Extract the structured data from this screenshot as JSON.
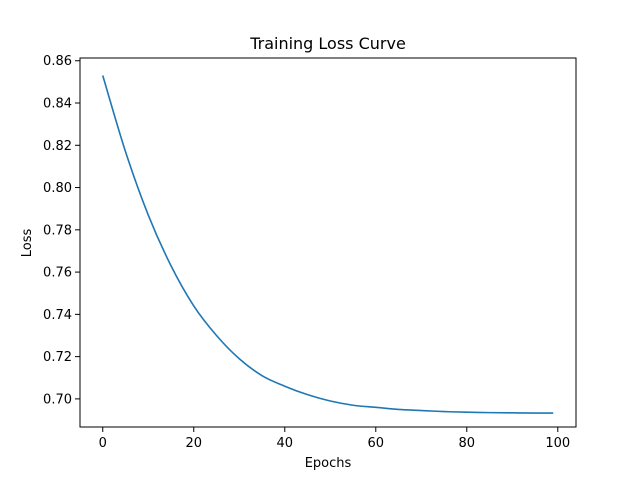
{
  "chart_data": {
    "type": "line",
    "title": "Training Loss Curve",
    "xlabel": "Epochs",
    "ylabel": "Loss",
    "xlim": [
      -5,
      104
    ],
    "ylim": [
      0.6867,
      0.8613
    ],
    "xticks": [
      0,
      20,
      40,
      60,
      80,
      100
    ],
    "xtick_labels": [
      "0",
      "20",
      "40",
      "60",
      "80",
      "100"
    ],
    "yticks": [
      0.7,
      0.72,
      0.74,
      0.76,
      0.78,
      0.8,
      0.82,
      0.84,
      0.86
    ],
    "ytick_labels": [
      "0.70",
      "0.72",
      "0.74",
      "0.76",
      "0.78",
      "0.80",
      "0.82",
      "0.84",
      "0.86"
    ],
    "grid": false,
    "series": [
      {
        "name": "Loss",
        "color": "#1f77b4",
        "x": [
          0,
          5,
          10,
          15,
          20,
          25,
          30,
          35,
          40,
          45,
          50,
          55,
          60,
          65,
          70,
          75,
          80,
          85,
          90,
          95,
          99
        ],
        "y": [
          0.853,
          0.817,
          0.787,
          0.763,
          0.744,
          0.73,
          0.719,
          0.711,
          0.706,
          0.702,
          0.699,
          0.697,
          0.696,
          0.695,
          0.6945,
          0.694,
          0.6937,
          0.6935,
          0.6934,
          0.6933,
          0.6933
        ]
      }
    ]
  }
}
